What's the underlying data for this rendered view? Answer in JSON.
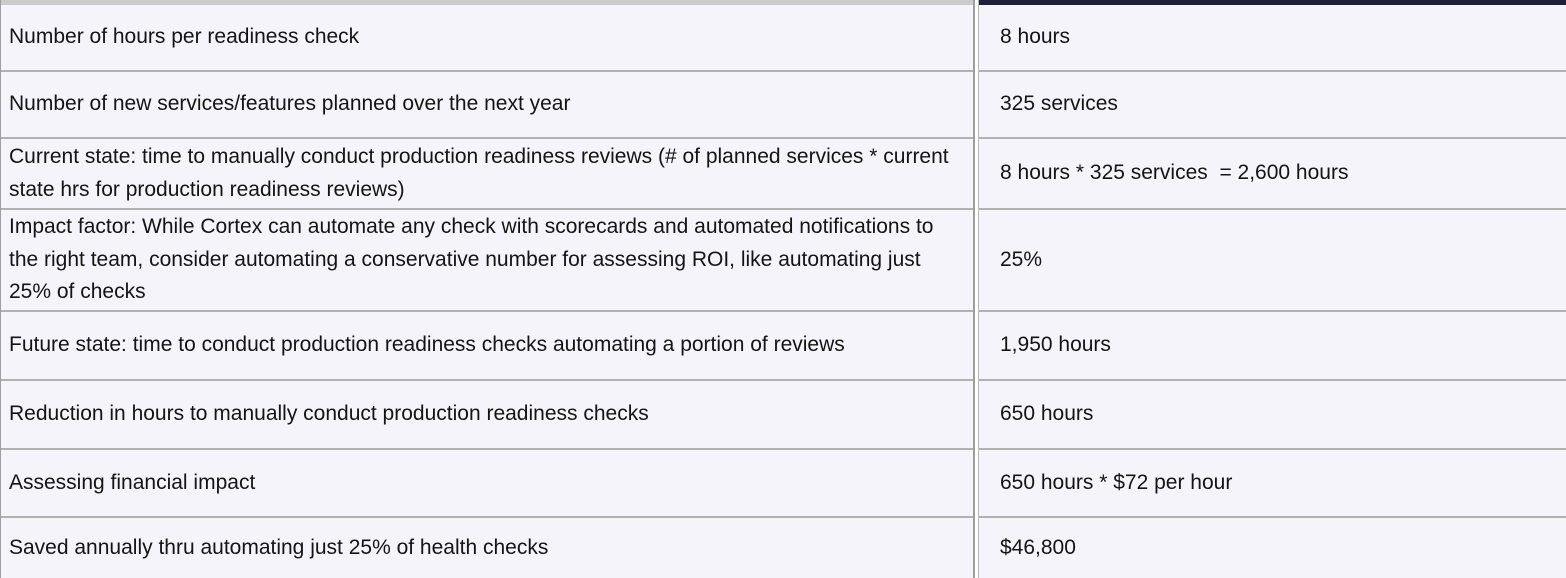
{
  "table": {
    "rows": [
      {
        "label": "Number of hours per readiness check",
        "value": "8 hours"
      },
      {
        "label": "Number of new services/features planned over the next year",
        "value": "325 services"
      },
      {
        "label": "Current state: time to manually conduct production readiness reviews (# of planned services * current state hrs for production readiness reviews)",
        "value": "8 hours * 325 services  = 2,600 hours"
      },
      {
        "label": "Impact factor: While Cortex can automate any check with scorecards and automated notifications to the right team, consider automating a conservative number for assessing ROI, like automating just 25% of checks",
        "value": "25%"
      },
      {
        "label": "Future state: time to conduct production readiness checks automating a portion of reviews",
        "value": "1,950 hours"
      },
      {
        "label": "Reduction in hours to manually conduct production readiness checks",
        "value": "650 hours"
      },
      {
        "label": "Assessing financial impact",
        "value": "650 hours * $72 per hour"
      },
      {
        "label": "Saved annually thru automating just 25% of health checks",
        "value": "$46,800"
      }
    ]
  },
  "colors": {
    "left_header_bar": "#cbcbcb",
    "right_header_bar": "#20203a",
    "cell_background": "#f5f4fa",
    "row_divider": "#b1b1b1",
    "text": "#141414"
  }
}
